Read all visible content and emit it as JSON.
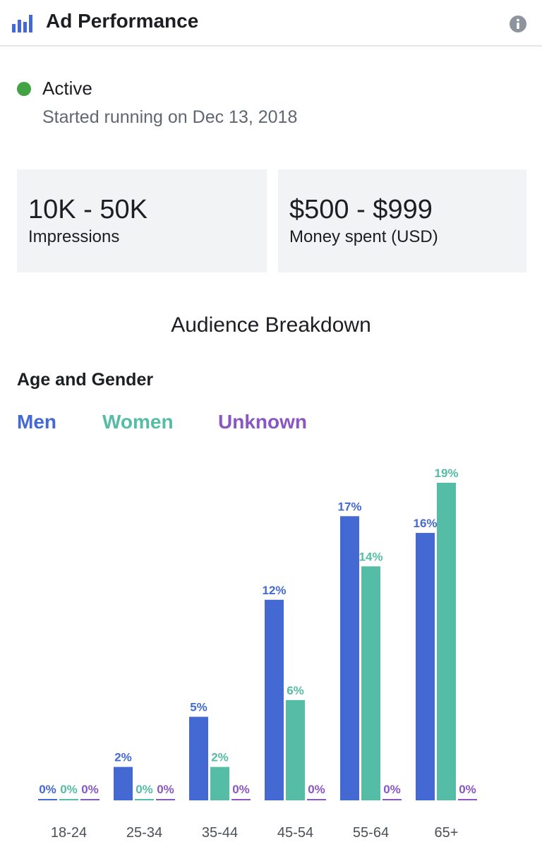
{
  "header": {
    "title": "Ad Performance",
    "icon": "bar-chart-icon",
    "info_icon": "info-icon"
  },
  "status": {
    "text": "Active",
    "color": "#42a244",
    "started": "Started running on Dec 13, 2018"
  },
  "stats": [
    {
      "value": "10K - 50K",
      "label": "Impressions"
    },
    {
      "value": "$500 - $999",
      "label": "Money spent (USD)"
    }
  ],
  "audience": {
    "title": "Audience Breakdown",
    "chart_title": "Age and Gender"
  },
  "chart_data": {
    "type": "bar",
    "title": "Age and Gender",
    "categories": [
      "18-24",
      "25-34",
      "35-44",
      "45-54",
      "55-64",
      "65+"
    ],
    "series": [
      {
        "name": "Men",
        "color": "#4469d3",
        "values": [
          0,
          2,
          5,
          12,
          17,
          16
        ]
      },
      {
        "name": "Women",
        "color": "#55bca5",
        "values": [
          0,
          0,
          2,
          6,
          14,
          19
        ]
      },
      {
        "name": "Unknown",
        "color": "#8957c3",
        "values": [
          0,
          0,
          0,
          0,
          0,
          0
        ]
      }
    ],
    "value_suffix": "%",
    "ylim": [
      0,
      19
    ],
    "grid": false,
    "legend_position": "top-left"
  }
}
